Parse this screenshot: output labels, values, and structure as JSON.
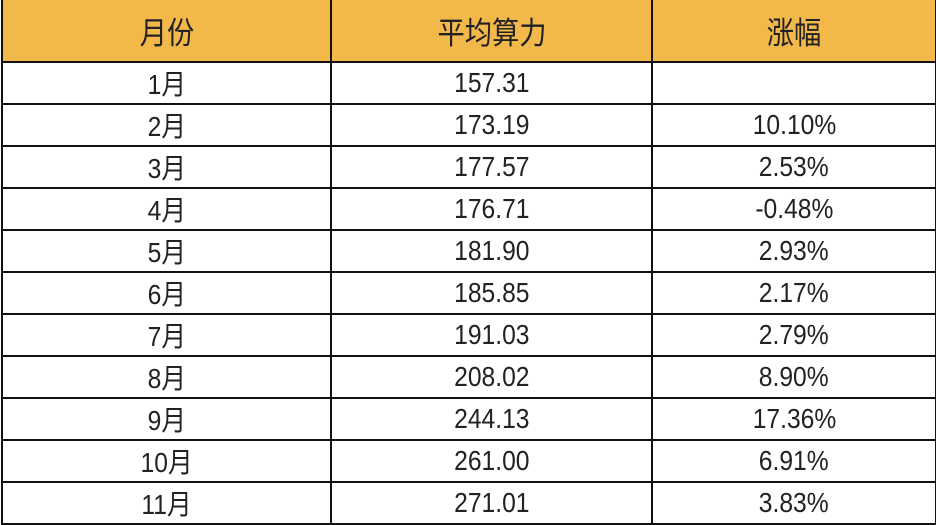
{
  "table": {
    "header_color": "#F3B84A",
    "headers": [
      "月份",
      "平均算力",
      "涨幅"
    ],
    "rows": [
      [
        "1月",
        "157.31",
        ""
      ],
      [
        "2月",
        "173.19",
        "10.10%"
      ],
      [
        "3月",
        "177.57",
        "2.53%"
      ],
      [
        "4月",
        "176.71",
        "-0.48%"
      ],
      [
        "5月",
        "181.90",
        "2.93%"
      ],
      [
        "6月",
        "185.85",
        "2.17%"
      ],
      [
        "7月",
        "191.03",
        "2.79%"
      ],
      [
        "8月",
        "208.02",
        "8.90%"
      ],
      [
        "9月",
        "244.13",
        "17.36%"
      ],
      [
        "10月",
        "261.00",
        "6.91%"
      ],
      [
        "11月",
        "271.01",
        "3.83%"
      ]
    ]
  }
}
